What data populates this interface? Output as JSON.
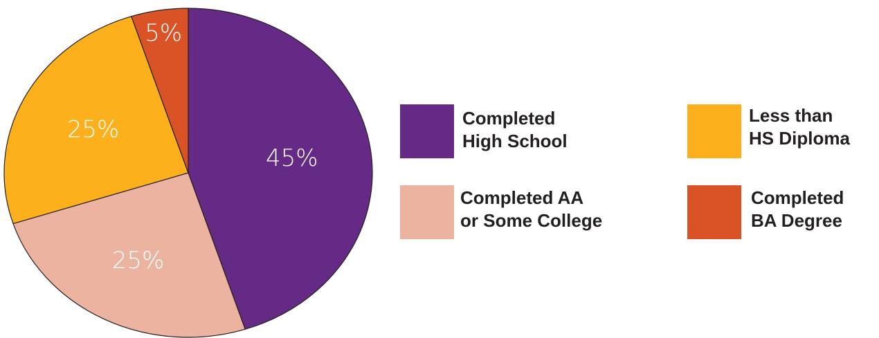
{
  "chart_data": {
    "type": "pie",
    "slices": [
      {
        "label": "Completed High School",
        "value": 45,
        "display": "45%",
        "color": "#652a86"
      },
      {
        "label": "Completed AA or Some College",
        "value": 25,
        "display": "25%",
        "color": "#ecb3a0"
      },
      {
        "label": "Less than HS Diploma",
        "value": 25,
        "display": "25%",
        "color": "#fbb01c"
      },
      {
        "label": "Completed BA Degree",
        "value": 5,
        "display": "5%",
        "color": "#da5326"
      }
    ],
    "legend_placement": "right"
  },
  "legend": {
    "items": [
      {
        "line1": "Completed",
        "line2": "High School",
        "color": "#652a86"
      },
      {
        "line1": "Less than",
        "line2": "HS Diploma",
        "color": "#fbb01c"
      },
      {
        "line1": "Completed AA",
        "line2": "or Some College",
        "color": "#ecb3a0"
      },
      {
        "line1": "Completed",
        "line2": "BA Degree",
        "color": "#da5326"
      }
    ]
  }
}
